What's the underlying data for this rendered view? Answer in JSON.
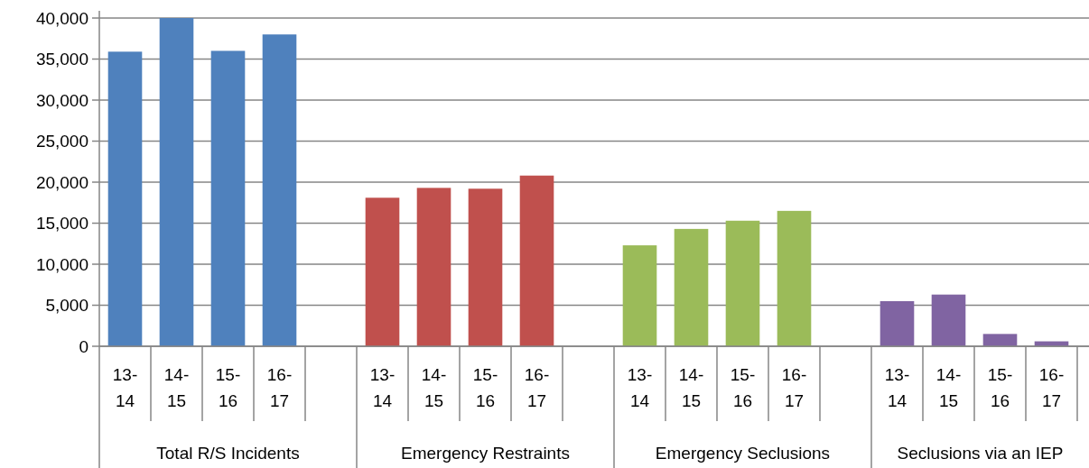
{
  "chart_data": {
    "type": "bar",
    "categories": [
      "13-14",
      "14-15",
      "15-16",
      "16-17",
      null,
      "13-14",
      "14-15",
      "15-16",
      "16-17",
      null,
      "13-14",
      "14-15",
      "15-16",
      "16-17",
      null,
      "13-14",
      "14-15",
      "15-16",
      "16-17"
    ],
    "values": [
      35900,
      40000,
      36000,
      38000,
      null,
      18100,
      19300,
      19200,
      20800,
      null,
      12300,
      14300,
      15300,
      16500,
      null,
      5500,
      6300,
      1500,
      600
    ],
    "colors": [
      "#4f81bd",
      "#4f81bd",
      "#4f81bd",
      "#4f81bd",
      null,
      "#c0504d",
      "#c0504d",
      "#c0504d",
      "#c0504d",
      null,
      "#9bbb59",
      "#9bbb59",
      "#9bbb59",
      "#9bbb59",
      null,
      "#8064a2",
      "#8064a2",
      "#8064a2",
      "#8064a2"
    ],
    "ylim": [
      0,
      40000
    ],
    "yticks": [
      {
        "value": 0,
        "label": "0"
      },
      {
        "value": 5000,
        "label": "5,000"
      },
      {
        "value": 10000,
        "label": "10,000"
      },
      {
        "value": 15000,
        "label": "15,000"
      },
      {
        "value": 20000,
        "label": "20,000"
      },
      {
        "value": 25000,
        "label": "25,000"
      },
      {
        "value": 30000,
        "label": "30,000"
      },
      {
        "value": 35000,
        "label": "35,000"
      },
      {
        "value": 40000,
        "label": "40,000"
      }
    ],
    "grid": "y",
    "annotations": [
      "Total R/S Incidents",
      "Emergency Restraints",
      "Emergency Seclusions",
      "Seclusions via an IEP"
    ]
  }
}
